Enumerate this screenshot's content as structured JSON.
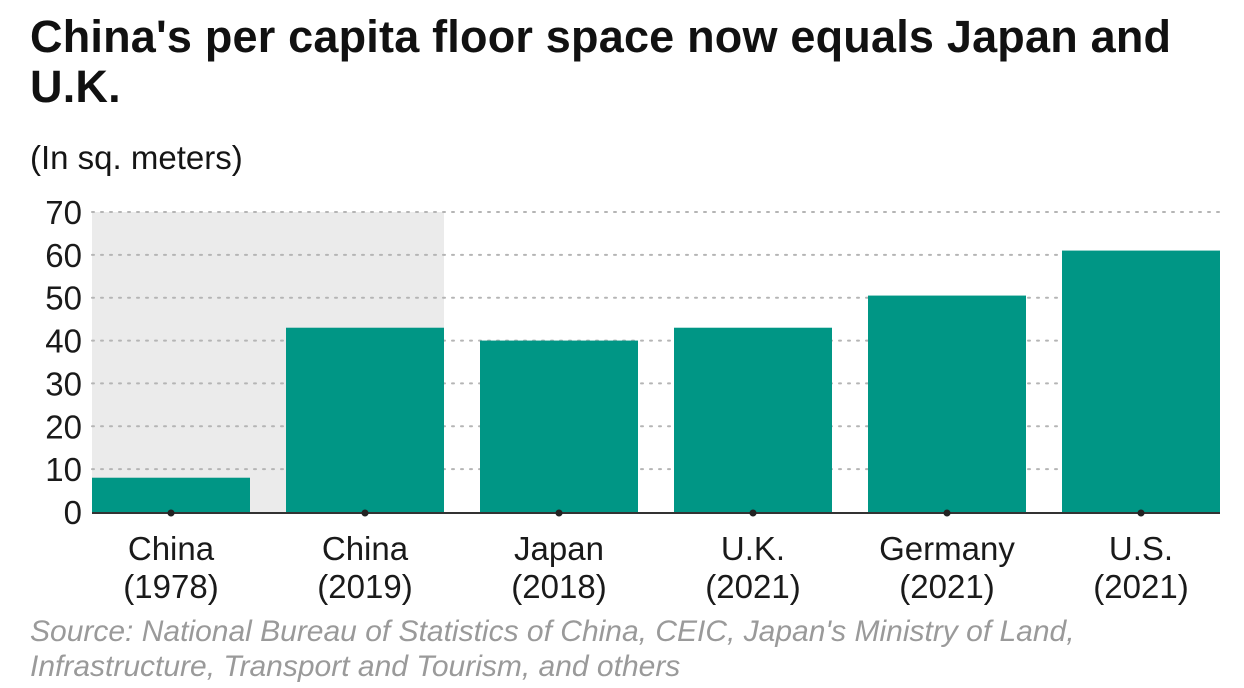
{
  "title": "China's per capita floor space now equals Japan and U.K.",
  "unit_label": "(In sq. meters)",
  "source": "Source: National Bureau of Statistics of China, CEIC, Japan's Ministry of Land, Infrastructure, Transport and Tourism, and others",
  "colors": {
    "bar": "#009685",
    "highlight_band": "#ebebeb",
    "grid": "#b5b5b5",
    "axis": "#333333",
    "source_text": "#9a9a9a"
  },
  "chart_data": {
    "type": "bar",
    "title": "China's per capita floor space now equals Japan and U.K.",
    "ylabel": "(In sq. meters)",
    "xlabel": "",
    "categories": [
      [
        "China",
        "(1978)"
      ],
      [
        "China",
        "(2019)"
      ],
      [
        "Japan",
        "(2018)"
      ],
      [
        "U.K.",
        "(2021)"
      ],
      [
        "Germany",
        "(2021)"
      ],
      [
        "U.S.",
        "(2021)"
      ]
    ],
    "values": [
      8,
      43,
      40,
      43,
      50.5,
      61
    ],
    "ylim": [
      0,
      70
    ],
    "yticks": [
      0,
      10,
      20,
      30,
      40,
      50,
      60,
      70
    ],
    "grid": "horizontal dotted",
    "highlighted_categories": [
      0,
      1
    ]
  }
}
